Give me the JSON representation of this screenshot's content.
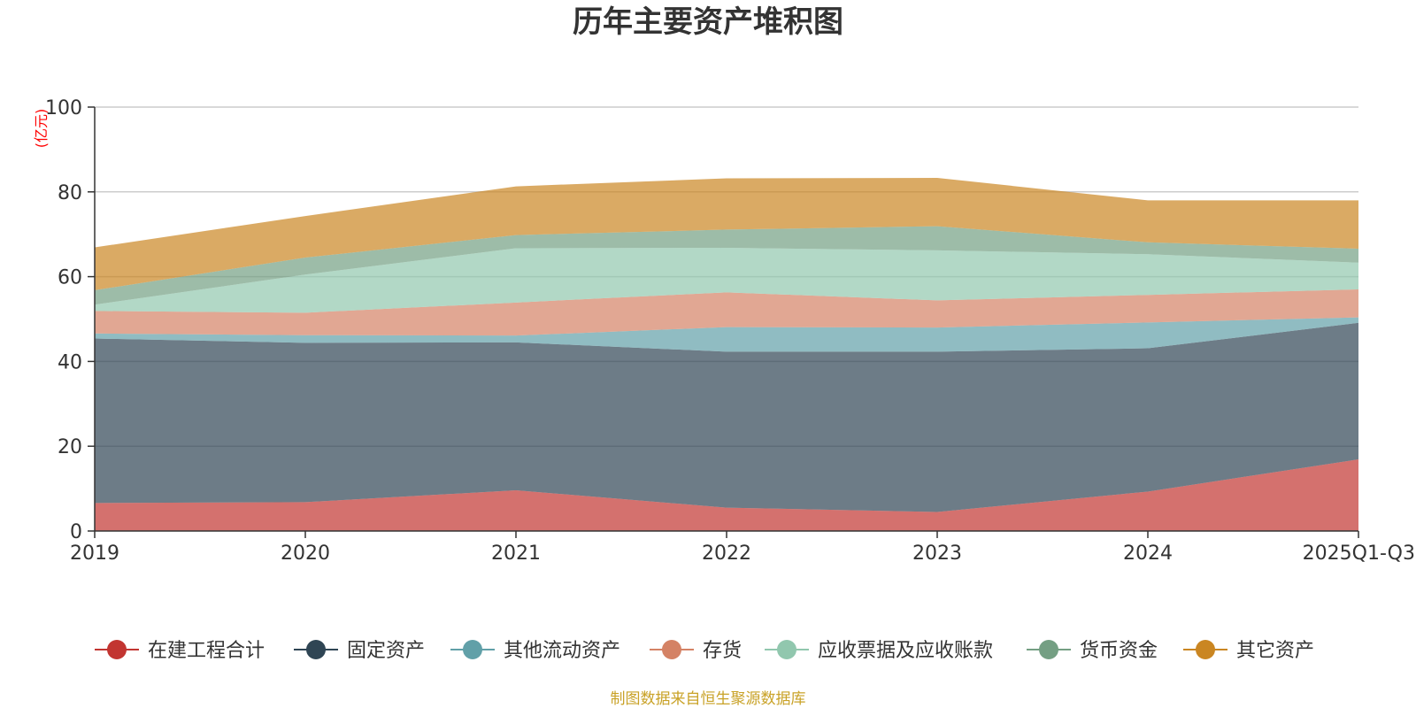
{
  "chart_data": {
    "type": "area",
    "stacked": true,
    "title": "历年主要资产堆积图",
    "unit_label": "(亿元)",
    "categories": [
      "2019",
      "2020",
      "2021",
      "2022",
      "2023",
      "2024",
      "2025Q1-Q3"
    ],
    "ylim": [
      0,
      100
    ],
    "y_ticks": [
      "0",
      "20",
      "40",
      "60",
      "80",
      "100"
    ],
    "grid": true,
    "legend_position": "bottom",
    "series": [
      {
        "name": "在建工程合计",
        "color": "#c23531",
        "values": [
          6.6,
          6.8,
          9.6,
          5.5,
          4.5,
          9.3,
          16.9
        ]
      },
      {
        "name": "固定资产",
        "color": "#2f4554",
        "values": [
          38.8,
          37.6,
          34.9,
          36.8,
          37.8,
          33.8,
          32.2
        ]
      },
      {
        "name": "其他流动资产",
        "color": "#61a0a8",
        "values": [
          1.2,
          1.8,
          1.6,
          5.8,
          5.7,
          6.1,
          1.3
        ]
      },
      {
        "name": "存货",
        "color": "#d48265",
        "values": [
          5.3,
          5.3,
          7.8,
          8.2,
          6.4,
          6.5,
          6.6
        ]
      },
      {
        "name": "应收票据及应收账款",
        "color": "#91c7ae",
        "values": [
          1.5,
          9.0,
          12.8,
          10.5,
          11.8,
          9.6,
          6.3
        ]
      },
      {
        "name": "货币资金",
        "color": "#749f83",
        "values": [
          3.4,
          4.0,
          3.1,
          4.3,
          5.7,
          2.8,
          3.3
        ]
      },
      {
        "name": "其它资产",
        "color": "#ca8622",
        "values": [
          10.1,
          9.8,
          11.5,
          12.1,
          11.4,
          9.9,
          11.4
        ]
      }
    ],
    "source_note": "制图数据来自恒生聚源数据库",
    "colors": {
      "axis": "#333333",
      "grid": "#cccccc",
      "unit": "#ff0000",
      "source": "#c9a227"
    }
  }
}
